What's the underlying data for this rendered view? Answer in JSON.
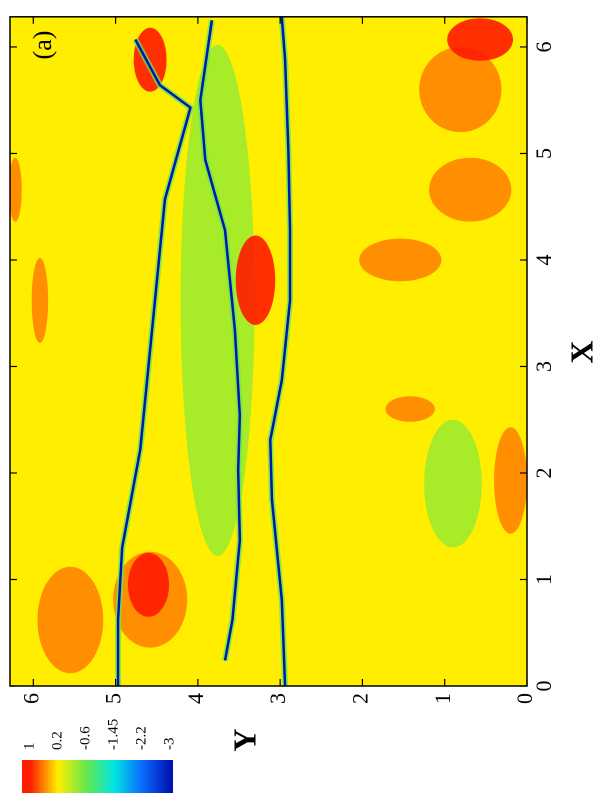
{
  "chart_data": {
    "type": "contour",
    "annotation": "(a)",
    "xlabel": "X",
    "ylabel": "Y",
    "xlim": [
      0,
      6.2832
    ],
    "ylim": [
      0,
      6.2832
    ],
    "xticks": [
      0,
      1,
      2,
      3,
      4,
      5,
      6
    ],
    "yticks": [
      0,
      1,
      2,
      3,
      4,
      5,
      6
    ],
    "background": 0.2,
    "colorbar": {
      "ticks": [
        1,
        0.2,
        -0.6,
        -1.45,
        -2.2,
        -3
      ],
      "colors": [
        "#ff1a00",
        "#ffee00",
        "#66e84a",
        "#00e6e0",
        "#0a6cff",
        "#0014b4"
      ]
    },
    "patches": [
      {
        "x": 3.62,
        "y": 3.76,
        "dx": 2.4,
        "dy": 0.45,
        "value": -0.3
      },
      {
        "x": 1.9,
        "y": 0.9,
        "dx": 0.6,
        "dy": 0.35,
        "value": -0.3
      },
      {
        "x": 0.62,
        "y": 5.55,
        "dx": 0.5,
        "dy": 0.4,
        "value": 0.6
      },
      {
        "x": 0.81,
        "y": 4.58,
        "dx": 0.45,
        "dy": 0.45,
        "value": 0.6
      },
      {
        "x": 4.66,
        "y": 0.69,
        "dx": 0.3,
        "dy": 0.5,
        "value": 0.6
      },
      {
        "x": 5.6,
        "y": 0.81,
        "dx": 0.4,
        "dy": 0.5,
        "value": 0.6
      },
      {
        "x": 1.93,
        "y": 0.2,
        "dx": 0.5,
        "dy": 0.2,
        "value": 0.6
      },
      {
        "x": 3.62,
        "y": 5.92,
        "dx": 0.4,
        "dy": 0.1,
        "value": 0.6
      },
      {
        "x": 2.6,
        "y": 1.42,
        "dx": 0.12,
        "dy": 0.3,
        "value": 0.6
      },
      {
        "x": 4.0,
        "y": 1.54,
        "dx": 0.2,
        "dy": 0.5,
        "value": 0.6
      },
      {
        "x": 4.66,
        "y": 6.22,
        "dx": 0.3,
        "dy": 0.08,
        "value": 0.6
      },
      {
        "x": 3.81,
        "y": 3.3,
        "dx": 0.42,
        "dy": 0.24,
        "value": 1
      },
      {
        "x": 5.88,
        "y": 4.58,
        "dx": 0.3,
        "dy": 0.2,
        "value": 1
      },
      {
        "x": 0.95,
        "y": 4.6,
        "dx": 0.3,
        "dy": 0.25,
        "value": 1
      },
      {
        "x": 6.07,
        "y": 0.57,
        "dx": 0.2,
        "dy": 0.4,
        "value": 1
      }
    ],
    "filaments": [
      {
        "value": -3,
        "x": [
          0,
          0.62,
          1.3,
          2.22,
          3.63,
          4.57,
          5.43,
          5.64,
          6.07
        ],
        "y": [
          4.97,
          4.97,
          4.92,
          4.7,
          4.52,
          4.4,
          4.09,
          4.46,
          4.76
        ]
      },
      {
        "value": -3,
        "x": [
          0.24,
          0.62,
          1.37,
          2.03,
          2.54,
          3.34,
          4.28,
          4.94,
          5.5,
          6.25
        ],
        "y": [
          3.67,
          3.58,
          3.49,
          3.51,
          3.49,
          3.55,
          3.67,
          3.91,
          3.97,
          3.83
        ]
      },
      {
        "value": -3,
        "x": [
          0,
          0.81,
          1.75,
          2.31,
          2.87,
          3.62,
          4.28,
          5.03,
          5.88,
          6.28
        ],
        "y": [
          2.94,
          2.98,
          3.1,
          3.12,
          2.98,
          2.88,
          2.88,
          2.9,
          2.94,
          2.98
        ]
      }
    ]
  }
}
